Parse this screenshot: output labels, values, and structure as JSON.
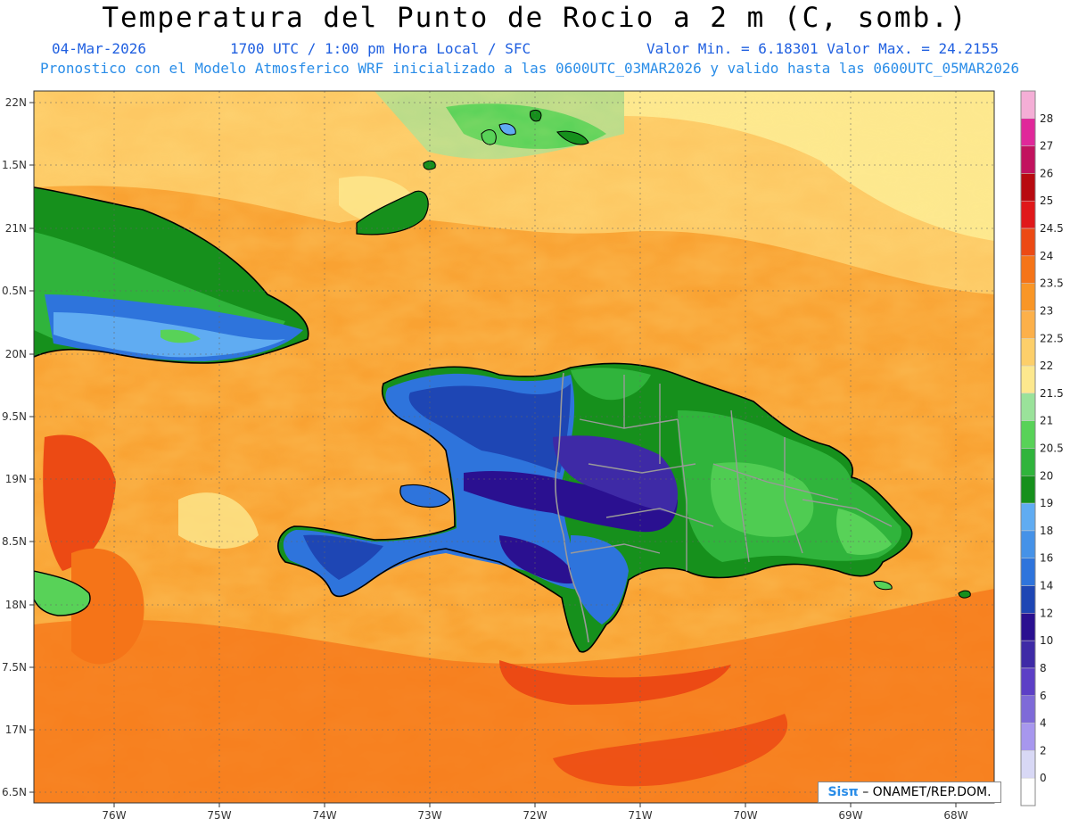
{
  "header": {
    "title": "Temperatura del Punto de Rocio a 2 m (C, somb.)",
    "date": "04-Mar-2026",
    "time": "1700 UTC / 1:00 pm Hora Local / SFC",
    "minmax": "Valor Min. = 6.18301  Valor Max. = 24.2155",
    "model_line": "Pronostico con el Modelo Atmosferico WRF inicializado a las 0600UTC_03MAR2026 y valido hasta las  0600UTC_05MAR2026"
  },
  "credit": {
    "brand": "Sisπ",
    "text": "– ONAMET/REP.DOM."
  },
  "map": {
    "lat_labels": [
      "22N",
      "1.5N",
      "21N",
      "0.5N",
      "20N",
      "9.5N",
      "19N",
      "8.5N",
      "18N",
      "7.5N",
      "17N",
      "6.5N"
    ],
    "lon_labels": [
      "76W",
      "75W",
      "74W",
      "73W",
      "72W",
      "71W",
      "70W",
      "69W",
      "68W"
    ]
  },
  "legend": {
    "levels": [
      "0",
      "2",
      "4",
      "6",
      "8",
      "10",
      "12",
      "14",
      "16",
      "18",
      "19",
      "20",
      "20.5",
      "21",
      "21.5",
      "22",
      "22.5",
      "23",
      "23.5",
      "24",
      "24.5",
      "25",
      "26",
      "27",
      "28"
    ],
    "colors": [
      "#ffffff",
      "#d8d8f5",
      "#a797ee",
      "#7e6ad8",
      "#5c3fc6",
      "#3e2aa6",
      "#2a1090",
      "#1e46b4",
      "#2e74dc",
      "#4592e8",
      "#60acf2",
      "#16901c",
      "#30b43c",
      "#58d258",
      "#9ae29a",
      "#fde88e",
      "#fdcf6a",
      "#fcb04a",
      "#f99626",
      "#f57418",
      "#ec4a14",
      "#e0181a",
      "#b80a10",
      "#c2125e",
      "#e0289a",
      "#f4aed6"
    ]
  }
}
